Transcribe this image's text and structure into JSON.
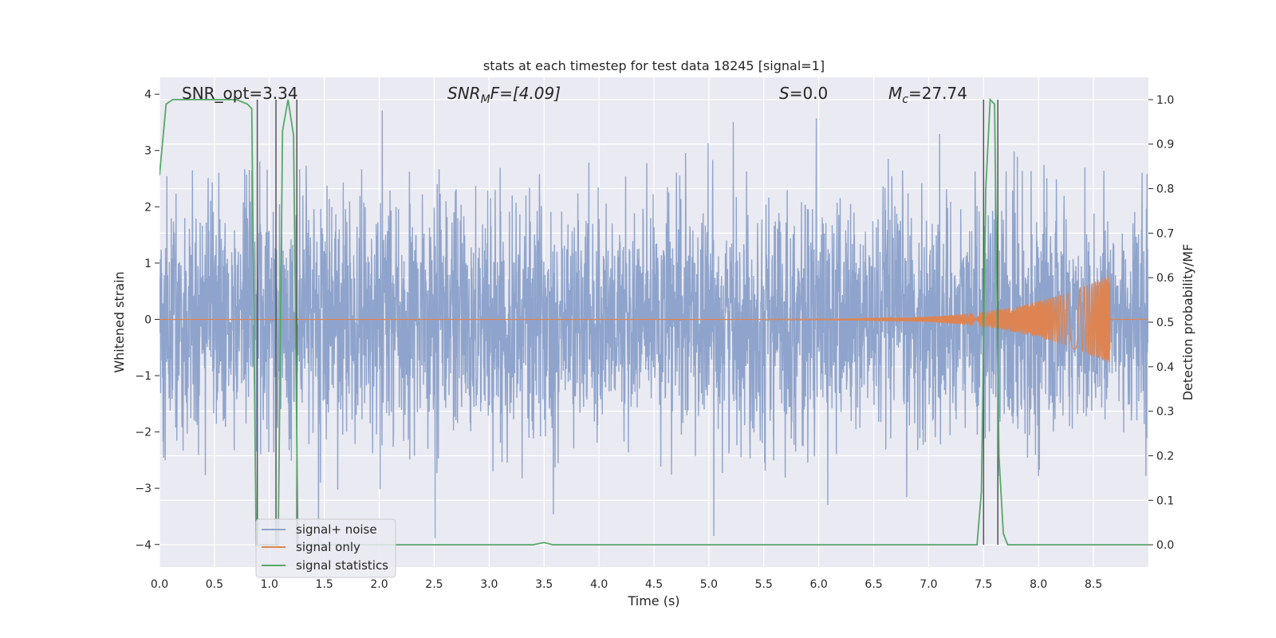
{
  "chart_data": {
    "type": "line",
    "title": "stats at each timestep for test data 18245 [signal=1]",
    "xlabel": "Time (s)",
    "ylabel": "Whitened strain",
    "y2label": "Detection probability/MF",
    "xlim": [
      0.0,
      9.0
    ],
    "ylim": [
      -4.4,
      4.3
    ],
    "y2lim": [
      -0.05,
      1.05
    ],
    "xticks": [
      "0.0",
      "0.5",
      "1.0",
      "1.5",
      "2.0",
      "2.5",
      "3.0",
      "3.5",
      "4.0",
      "4.5",
      "5.0",
      "5.5",
      "6.0",
      "6.5",
      "7.0",
      "7.5",
      "8.0",
      "8.5"
    ],
    "xtick_values": [
      0.0,
      0.5,
      1.0,
      1.5,
      2.0,
      2.5,
      3.0,
      3.5,
      4.0,
      4.5,
      5.0,
      5.5,
      6.0,
      6.5,
      7.0,
      7.5,
      8.0,
      8.5
    ],
    "yticks": [
      "−4",
      "−3",
      "−2",
      "−1",
      "0",
      "1",
      "2",
      "3",
      "4"
    ],
    "ytick_values": [
      -4,
      -3,
      -2,
      -1,
      0,
      1,
      2,
      3,
      4
    ],
    "y2ticks": [
      "0.0",
      "0.1",
      "0.2",
      "0.3",
      "0.4",
      "0.5",
      "0.6",
      "0.7",
      "0.8",
      "0.9",
      "1.0"
    ],
    "y2tick_values": [
      0.0,
      0.1,
      0.2,
      0.3,
      0.4,
      0.5,
      0.6,
      0.7,
      0.8,
      0.9,
      1.0
    ],
    "grid": true,
    "legend_placement": "lower-left",
    "annotations": {
      "snr_opt": "SNR_opt=3.34",
      "snr_mf_prefix": "SNR",
      "snr_mf_sub": "M",
      "snr_mf_suffix": "F=[4.09]",
      "s_prefix": "S",
      "s_suffix": "=0.0",
      "mc_prefix": "M",
      "mc_sub": "c",
      "mc_suffix": "=27.74"
    },
    "series": [
      {
        "name": "signal+ noise",
        "color": "#8fa4cc",
        "description": "dense noise trace, whitened strain roughly within ±2.5 with spikes to about ±4",
        "envelope": {
          "x_range": [
            0.0,
            9.0
          ],
          "typical_abs": 2.3,
          "peak_abs": 4.0
        }
      },
      {
        "name": "signal only",
        "color": "#dd8452",
        "chirp": {
          "x_start": 5.5,
          "x_end": 8.65,
          "amp_start": 0.01,
          "amp_end": 0.8
        }
      },
      {
        "name": "signal statistics",
        "color": "#55a868",
        "axis": "right",
        "x": [
          0.0,
          0.06,
          0.12,
          0.2,
          0.3,
          0.5,
          0.7,
          0.8,
          0.84,
          0.88,
          0.92,
          0.96,
          1.0,
          1.04,
          1.08,
          1.12,
          1.17,
          1.22,
          1.26,
          1.3,
          1.34,
          1.6,
          2.0,
          2.6,
          3.0,
          3.4,
          3.5,
          3.58,
          3.7,
          4.5,
          5.5,
          6.5,
          7.0,
          7.4,
          7.44,
          7.48,
          7.52,
          7.56,
          7.6,
          7.64,
          7.68,
          7.72,
          7.76,
          7.8,
          8.2,
          9.0
        ],
        "y": [
          0.83,
          0.99,
          1.0,
          1.0,
          1.0,
          1.0,
          1.0,
          0.99,
          0.98,
          0.0,
          0.0,
          0.0,
          0.0,
          0.0,
          0.0,
          0.93,
          1.0,
          0.92,
          0.0,
          0.0,
          0.0,
          0.0,
          0.0,
          0.0,
          0.0,
          0.0,
          0.005,
          0.0,
          0.0,
          0.0,
          0.0,
          0.0,
          0.0,
          0.0,
          0.0,
          0.12,
          0.8,
          1.0,
          0.99,
          0.2,
          0.025,
          0.0,
          0.0,
          0.0,
          0.0,
          0.0
        ]
      }
    ],
    "vlines": [
      0.89,
      1.06,
      1.25,
      7.5,
      7.63
    ],
    "vline_color": "#555555"
  }
}
